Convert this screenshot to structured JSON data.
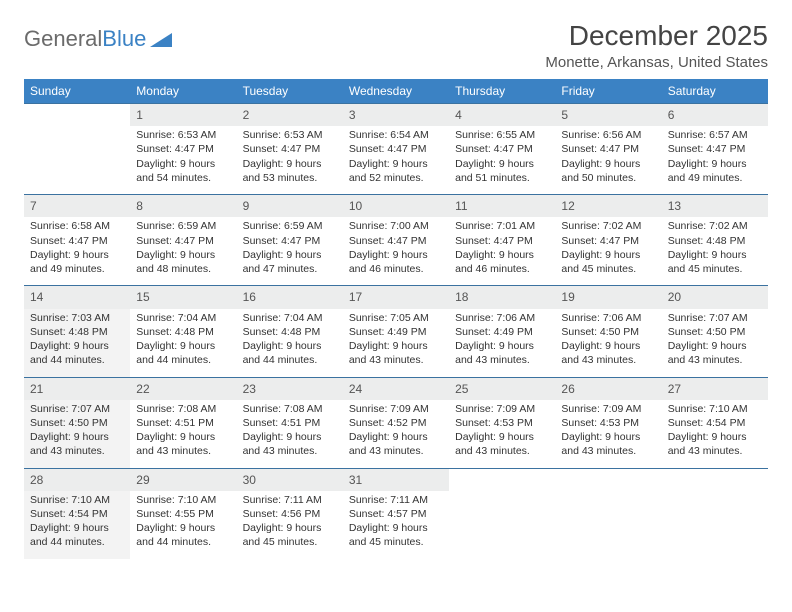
{
  "logo": {
    "part1": "General",
    "part2": "Blue"
  },
  "title": "December 2025",
  "subtitle": "Monette, Arkansas, United States",
  "colors": {
    "header_bg": "#3b82c4",
    "header_text": "#ffffff",
    "daynum_bg": "#eceded",
    "row_border": "#3b72a0",
    "shaded_bg": "#f3f3f3",
    "page_bg": "#ffffff",
    "logo_gray": "#6b6b6b",
    "logo_blue": "#3b82c4"
  },
  "day_headers": [
    "Sunday",
    "Monday",
    "Tuesday",
    "Wednesday",
    "Thursday",
    "Friday",
    "Saturday"
  ],
  "weeks": [
    {
      "nums": [
        "",
        "1",
        "2",
        "3",
        "4",
        "5",
        "6"
      ],
      "cells": [
        null,
        {
          "sr": "6:53 AM",
          "ss": "4:47 PM",
          "dl": "9 hours and 54 minutes."
        },
        {
          "sr": "6:53 AM",
          "ss": "4:47 PM",
          "dl": "9 hours and 53 minutes."
        },
        {
          "sr": "6:54 AM",
          "ss": "4:47 PM",
          "dl": "9 hours and 52 minutes."
        },
        {
          "sr": "6:55 AM",
          "ss": "4:47 PM",
          "dl": "9 hours and 51 minutes."
        },
        {
          "sr": "6:56 AM",
          "ss": "4:47 PM",
          "dl": "9 hours and 50 minutes."
        },
        {
          "sr": "6:57 AM",
          "ss": "4:47 PM",
          "dl": "9 hours and 49 minutes."
        }
      ],
      "shaded": [
        false,
        false,
        false,
        false,
        false,
        false,
        false
      ]
    },
    {
      "nums": [
        "7",
        "8",
        "9",
        "10",
        "11",
        "12",
        "13"
      ],
      "cells": [
        {
          "sr": "6:58 AM",
          "ss": "4:47 PM",
          "dl": "9 hours and 49 minutes."
        },
        {
          "sr": "6:59 AM",
          "ss": "4:47 PM",
          "dl": "9 hours and 48 minutes."
        },
        {
          "sr": "6:59 AM",
          "ss": "4:47 PM",
          "dl": "9 hours and 47 minutes."
        },
        {
          "sr": "7:00 AM",
          "ss": "4:47 PM",
          "dl": "9 hours and 46 minutes."
        },
        {
          "sr": "7:01 AM",
          "ss": "4:47 PM",
          "dl": "9 hours and 46 minutes."
        },
        {
          "sr": "7:02 AM",
          "ss": "4:47 PM",
          "dl": "9 hours and 45 minutes."
        },
        {
          "sr": "7:02 AM",
          "ss": "4:48 PM",
          "dl": "9 hours and 45 minutes."
        }
      ],
      "shaded": [
        false,
        false,
        false,
        false,
        false,
        false,
        false
      ]
    },
    {
      "nums": [
        "14",
        "15",
        "16",
        "17",
        "18",
        "19",
        "20"
      ],
      "cells": [
        {
          "sr": "7:03 AM",
          "ss": "4:48 PM",
          "dl": "9 hours and 44 minutes."
        },
        {
          "sr": "7:04 AM",
          "ss": "4:48 PM",
          "dl": "9 hours and 44 minutes."
        },
        {
          "sr": "7:04 AM",
          "ss": "4:48 PM",
          "dl": "9 hours and 44 minutes."
        },
        {
          "sr": "7:05 AM",
          "ss": "4:49 PM",
          "dl": "9 hours and 43 minutes."
        },
        {
          "sr": "7:06 AM",
          "ss": "4:49 PM",
          "dl": "9 hours and 43 minutes."
        },
        {
          "sr": "7:06 AM",
          "ss": "4:50 PM",
          "dl": "9 hours and 43 minutes."
        },
        {
          "sr": "7:07 AM",
          "ss": "4:50 PM",
          "dl": "9 hours and 43 minutes."
        }
      ],
      "shaded": [
        true,
        false,
        false,
        false,
        false,
        false,
        false
      ]
    },
    {
      "nums": [
        "21",
        "22",
        "23",
        "24",
        "25",
        "26",
        "27"
      ],
      "cells": [
        {
          "sr": "7:07 AM",
          "ss": "4:50 PM",
          "dl": "9 hours and 43 minutes."
        },
        {
          "sr": "7:08 AM",
          "ss": "4:51 PM",
          "dl": "9 hours and 43 minutes."
        },
        {
          "sr": "7:08 AM",
          "ss": "4:51 PM",
          "dl": "9 hours and 43 minutes."
        },
        {
          "sr": "7:09 AM",
          "ss": "4:52 PM",
          "dl": "9 hours and 43 minutes."
        },
        {
          "sr": "7:09 AM",
          "ss": "4:53 PM",
          "dl": "9 hours and 43 minutes."
        },
        {
          "sr": "7:09 AM",
          "ss": "4:53 PM",
          "dl": "9 hours and 43 minutes."
        },
        {
          "sr": "7:10 AM",
          "ss": "4:54 PM",
          "dl": "9 hours and 43 minutes."
        }
      ],
      "shaded": [
        true,
        false,
        false,
        false,
        false,
        false,
        false
      ]
    },
    {
      "nums": [
        "28",
        "29",
        "30",
        "31",
        "",
        "",
        ""
      ],
      "cells": [
        {
          "sr": "7:10 AM",
          "ss": "4:54 PM",
          "dl": "9 hours and 44 minutes."
        },
        {
          "sr": "7:10 AM",
          "ss": "4:55 PM",
          "dl": "9 hours and 44 minutes."
        },
        {
          "sr": "7:11 AM",
          "ss": "4:56 PM",
          "dl": "9 hours and 45 minutes."
        },
        {
          "sr": "7:11 AM",
          "ss": "4:57 PM",
          "dl": "9 hours and 45 minutes."
        },
        null,
        null,
        null
      ],
      "shaded": [
        true,
        false,
        false,
        false,
        false,
        false,
        false
      ]
    }
  ],
  "labels": {
    "sunrise": "Sunrise: ",
    "sunset": "Sunset: ",
    "daylight": "Daylight: "
  }
}
